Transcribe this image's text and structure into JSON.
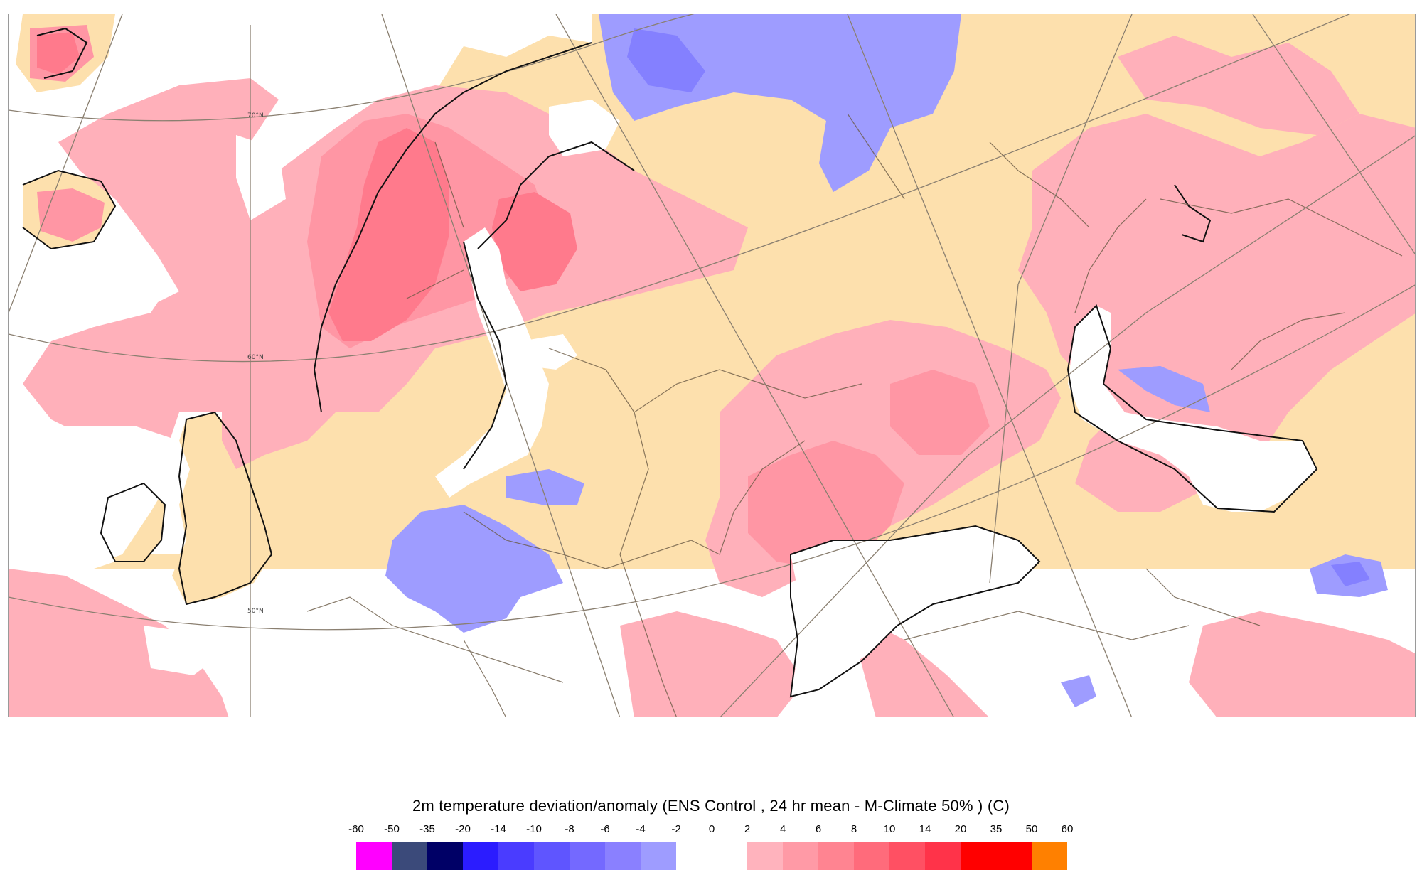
{
  "map": {
    "latitude_labels": [
      "70°N",
      "60°N",
      "50°N"
    ],
    "colors": {
      "ocean": "#ffffff",
      "land_neutral": "#fde0ad",
      "warm_2_4": "#ffb0ba",
      "warm_4_6": "#ff96a4",
      "warm_6_8": "#ff7a8c",
      "cold_-2_0": "#9e9cff",
      "cold_-4_-2": "#8480ff",
      "coast": "#111111",
      "border": "#6a5a45",
      "graticule": "#8a7f70"
    }
  },
  "legend": {
    "title": "2m temperature deviation/anomaly (ENS Control , 24 hr mean - M-Climate 50% ) (C)",
    "ticks": [
      "-60",
      "-50",
      "-35",
      "-20",
      "-14",
      "-10",
      "-8",
      "-6",
      "-4",
      "-2",
      "0",
      "2",
      "4",
      "6",
      "8",
      "10",
      "14",
      "20",
      "35",
      "50",
      "60"
    ],
    "swatches": [
      "#ff00ff",
      "#3b4a7a",
      "#000066",
      "#2b1cff",
      "#4a3cff",
      "#5f55ff",
      "#7469ff",
      "#8a80ff",
      "#9e9cff",
      "#ffffff",
      "#ffffff",
      "#ffb3bd",
      "#ff9aa6",
      "#ff8491",
      "#ff6b7b",
      "#ff5063",
      "#ff3349",
      "#ff0000",
      "#ff0000",
      "#ff8000"
    ]
  }
}
